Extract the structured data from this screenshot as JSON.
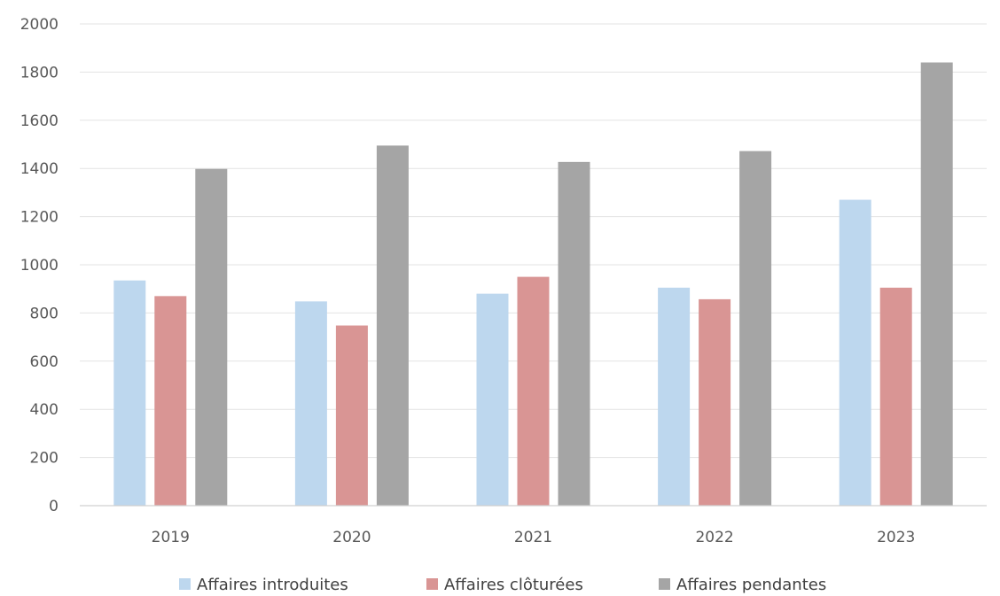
{
  "chart_data": {
    "type": "bar",
    "title": "",
    "xlabel": "",
    "ylabel": "",
    "categories": [
      "2019",
      "2020",
      "2021",
      "2022",
      "2023"
    ],
    "series": [
      {
        "name": "Affaires introduites",
        "color": "#bdd7ee",
        "values": [
          935,
          848,
          880,
          905,
          1270
        ]
      },
      {
        "name": "Affaires clôturées",
        "color": "#d99594",
        "values": [
          870,
          748,
          950,
          857,
          905
        ]
      },
      {
        "name": "Affaires pendantes",
        "color": "#a5a5a5",
        "values": [
          1398,
          1495,
          1427,
          1472,
          1840
        ]
      }
    ],
    "ylim": [
      0,
      2000
    ],
    "yticks": [
      "0",
      "200",
      "400",
      "600",
      "800",
      "1000",
      "1200",
      "1400",
      "1600",
      "1800",
      "2000"
    ],
    "grid": true,
    "legend": "bottom"
  }
}
